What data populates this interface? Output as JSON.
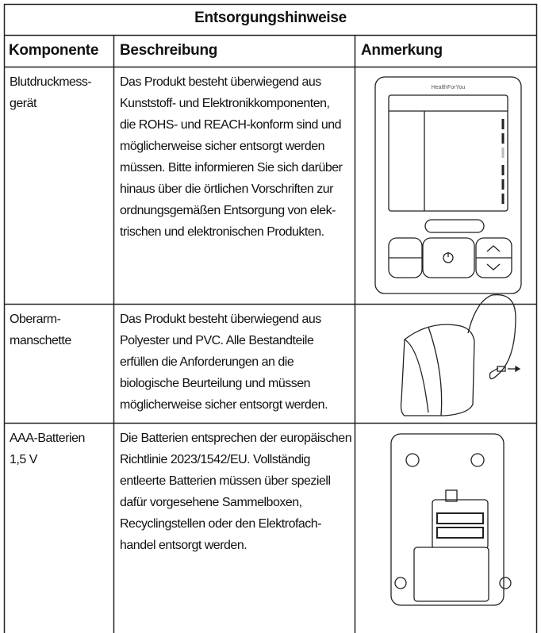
{
  "table": {
    "title": "Entsorgungshinweise",
    "header": [
      "Komponente",
      "Beschreibung",
      "Anmerkung"
    ],
    "rows": [
      {
        "component": [
          "Blutdruckmess-",
          "gerät"
        ],
        "description": [
          "Das Produkt besteht überwiegend aus",
          "Kunststoff- und Elektronikkomponenten,",
          "die ROHS- und REACH-konform sind und",
          "möglicherweise sicher entsorgt werden",
          "müssen. Bitte informieren Sie sich darüber",
          "hinaus über die örtlichen Vorschriften zur",
          "ordnungsgemäßen Entsorgung von elek-",
          "trischen und elektronischen Produkten."
        ]
      },
      {
        "component": [
          "Oberarm-",
          "manschette"
        ],
        "description": [
          "Das Produkt besteht überwiegend aus",
          "Polyester und PVC. Alle Bestandteile",
          "erfüllen die Anforderungen an die",
          "biologische Beurteilung und müssen",
          "möglicherweise sicher entsorgt werden."
        ]
      },
      {
        "component": [
          "AAA-Batterien",
          "1,5 V"
        ],
        "description": [
          "Die Batterien entsprechen der europäischen",
          "Richtlinie 2023/1542/EU. Vollständig",
          "entleerte Batterien müssen über speziell",
          "dafür vorgesehene Sammelboxen,",
          "Recyclingstellen oder den Elektrofach-",
          "handel entsorgt werden."
        ]
      }
    ],
    "device_brand": "HealthForYou"
  }
}
